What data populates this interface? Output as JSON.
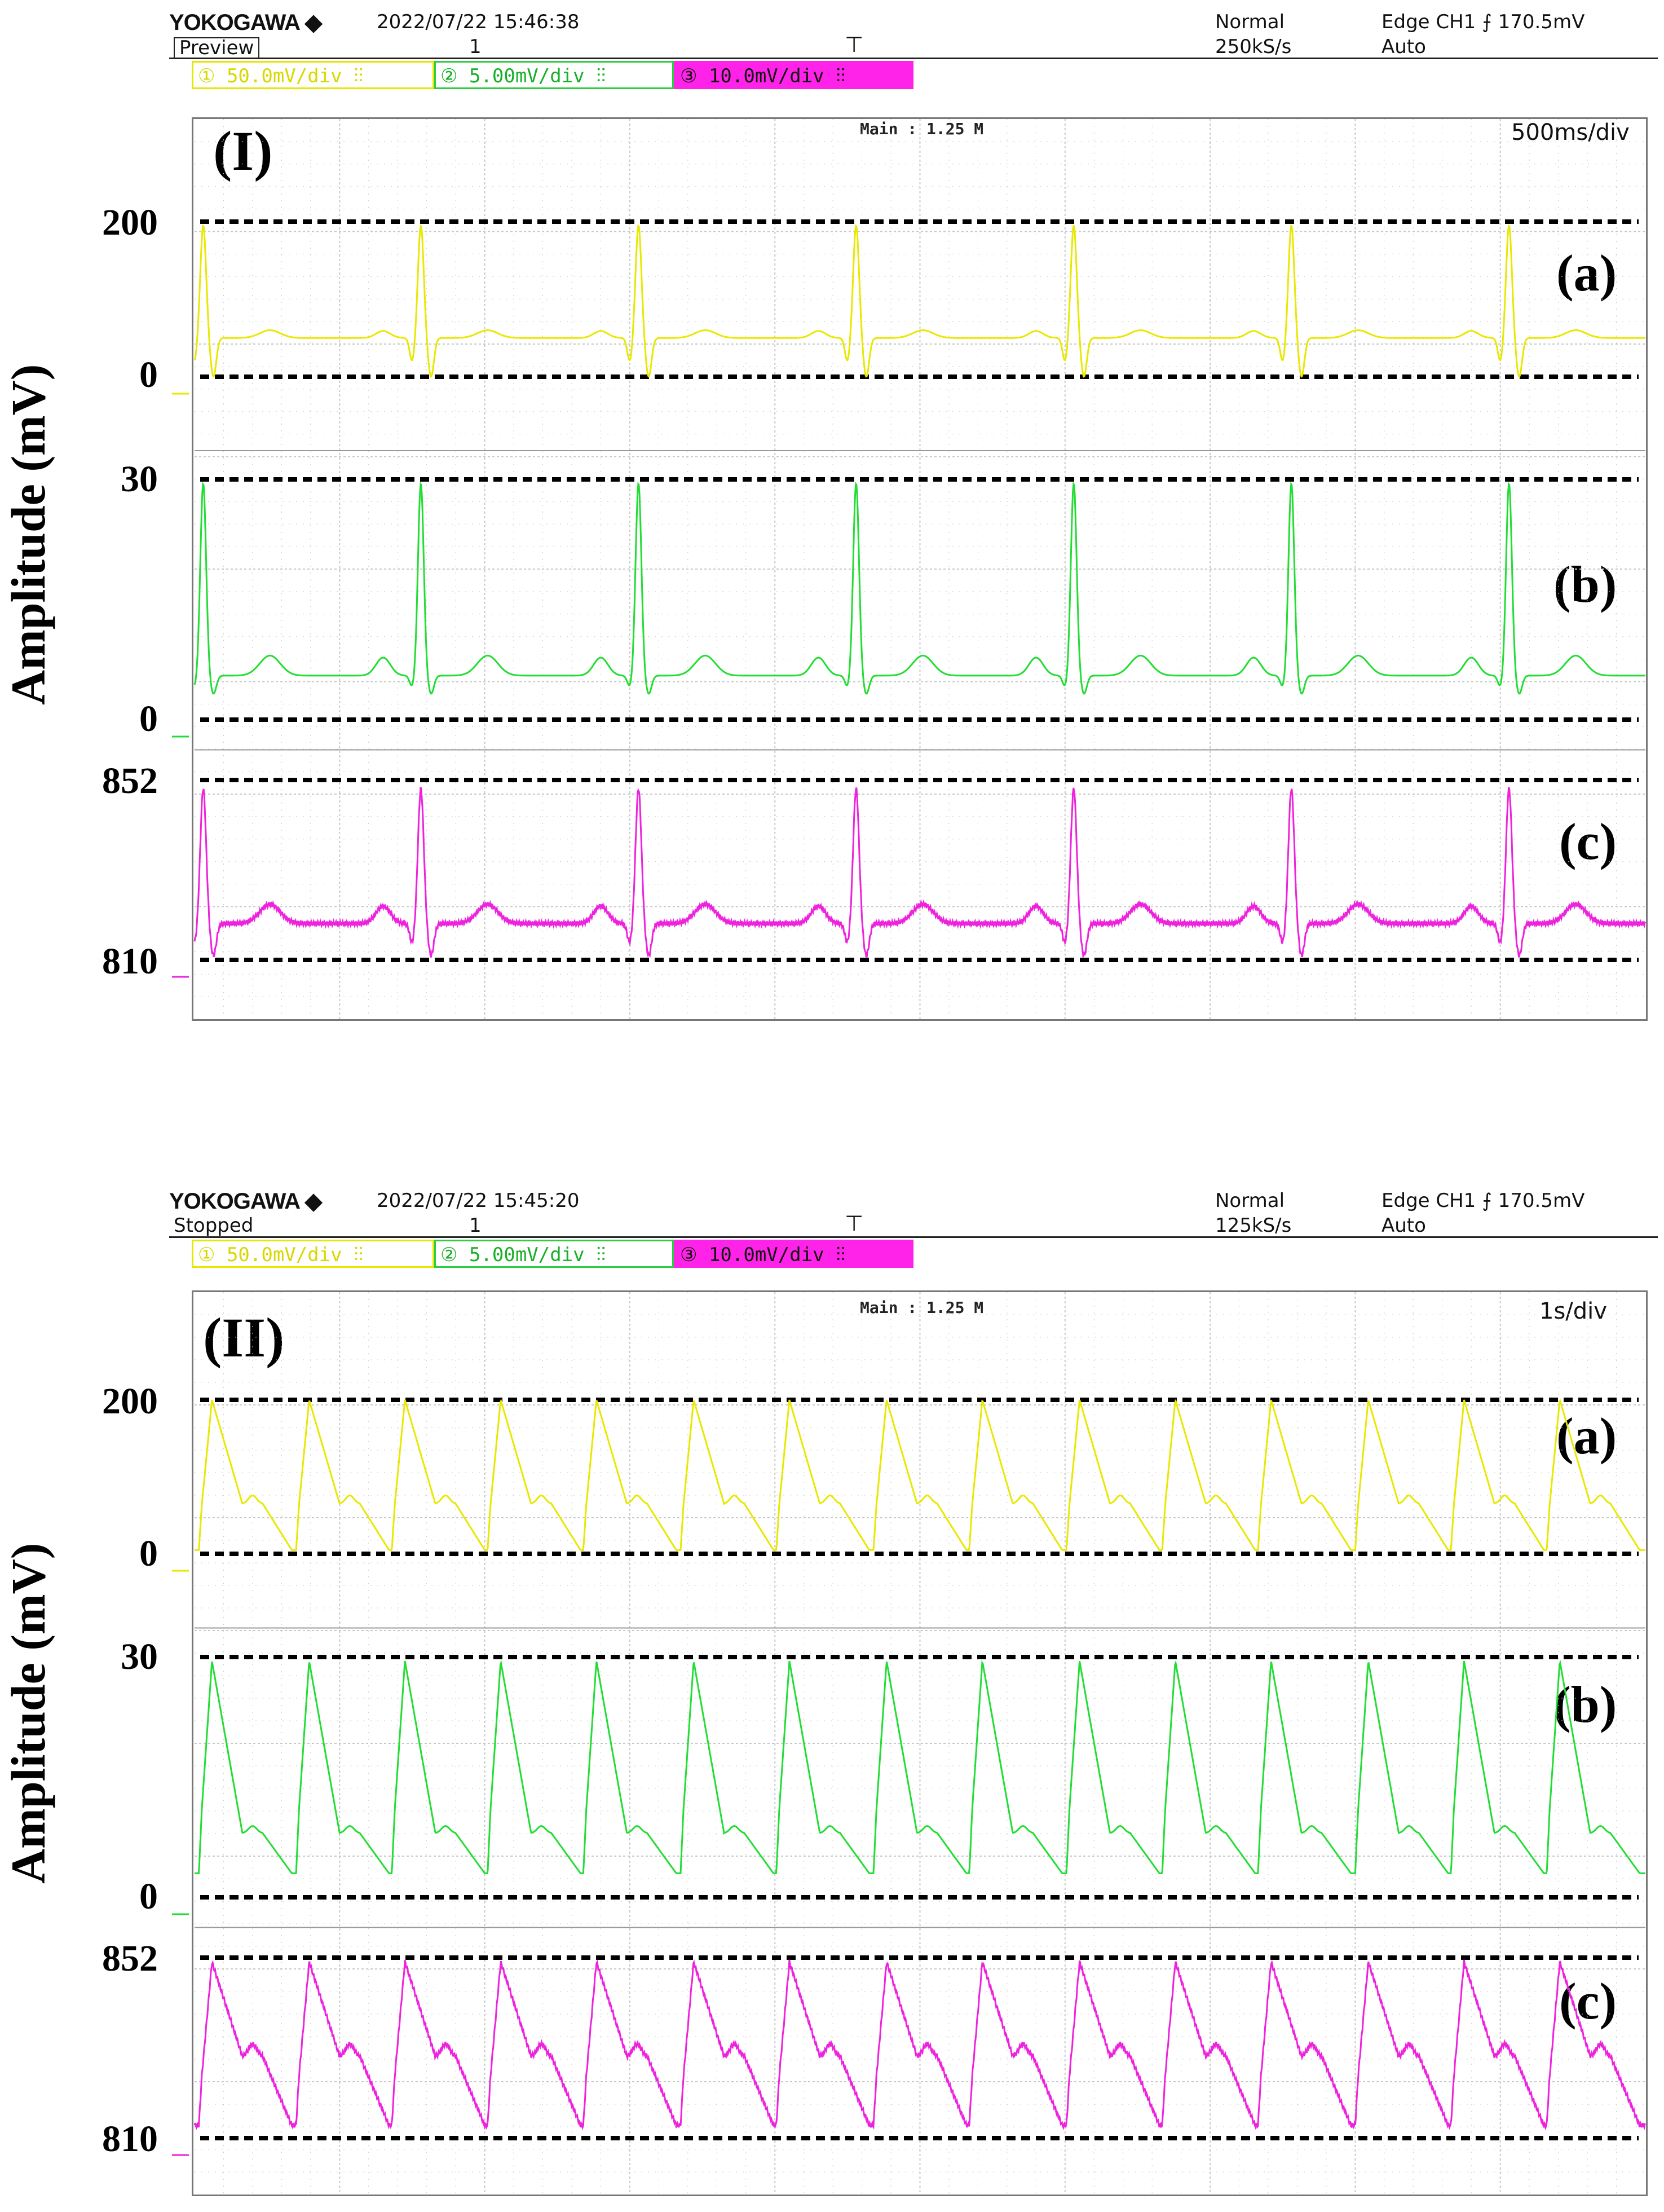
{
  "colors": {
    "ch1": "#e8e800",
    "ch2": "#22dd33",
    "ch3": "#ee22dd",
    "grid": "#c8c8c8",
    "ref": "#000000"
  },
  "ylabel": "Amplitude (mV)",
  "panels": [
    {
      "label": "(I)",
      "brand": "YOKOGAWA ◆",
      "datetime": "2022/07/22 15:46:38",
      "status": "Preview",
      "record": "1",
      "mode": "Normal",
      "sample_rate": "250kS/s",
      "trigger": "Edge CH1 ⨍ 170.5mV",
      "trigger_mode": "Auto",
      "ch1": "① 50.0mV/div ⫶⫶",
      "ch2": "② 5.00mV/div ⫶⫶",
      "ch3": "③ 10.0mV/div ⫶⫶",
      "main": "Main : 1.25 M",
      "timebase": "500ms/div"
    },
    {
      "label": "(II)",
      "brand": "YOKOGAWA ◆",
      "datetime": "2022/07/22 15:45:20",
      "status": "Stopped",
      "record": "1",
      "mode": "Normal",
      "sample_rate": "125kS/s",
      "trigger": "Edge CH1 ⨍ 170.5mV",
      "trigger_mode": "Auto",
      "ch1": "① 50.0mV/div ⫶⫶",
      "ch2": "② 5.00mV/div ⫶⫶",
      "ch3": "③ 10.0mV/div ⫶⫶",
      "main": "Main : 1.25 M",
      "timebase": "1s/div"
    }
  ],
  "chart_data": [
    {
      "type": "line",
      "title": "(I)",
      "ylabel": "Amplitude (mV)",
      "x_unit": "s",
      "timebase": "500ms/div",
      "xlim": [
        0,
        5.0
      ],
      "beat_times": [
        0.03,
        0.78,
        1.53,
        2.28,
        3.03,
        3.78,
        4.53
      ],
      "subplots": [
        {
          "label": "(a)",
          "channel": "CH1",
          "ylim": [
            0,
            200
          ],
          "ticks": [
            "200",
            "0"
          ],
          "baseline": 50,
          "peak": 195,
          "trough": 0,
          "t_wave": 60
        },
        {
          "label": "(b)",
          "channel": "CH2",
          "ylim": [
            0,
            30
          ],
          "ticks": [
            "30",
            "0"
          ],
          "baseline": 5.5,
          "peak": 29.5,
          "trough": 3.2,
          "t_wave": 8
        },
        {
          "label": "(c)",
          "channel": "CH3",
          "ylim": [
            810,
            852
          ],
          "ticks": [
            "852",
            "810"
          ],
          "baseline": 818.5,
          "peak": 850,
          "trough": 811,
          "t_wave": 823
        }
      ]
    },
    {
      "type": "line",
      "title": "(II)",
      "ylabel": "Amplitude (mV)",
      "x_unit": "s",
      "timebase": "1s/div",
      "xlim": [
        0,
        10.0
      ],
      "beat_times": [
        0.05,
        0.72,
        1.38,
        2.04,
        2.7,
        3.37,
        4.03,
        4.7,
        5.36,
        6.03,
        6.69,
        7.35,
        8.02,
        8.68,
        9.34
      ],
      "subplots": [
        {
          "label": "(a)",
          "channel": "CH1",
          "ylim": [
            0,
            200
          ],
          "ticks": [
            "200",
            "0"
          ],
          "peak": 200,
          "plateau": 65,
          "min": 5
        },
        {
          "label": "(b)",
          "channel": "CH2",
          "ylim": [
            0,
            30
          ],
          "ticks": [
            "30",
            "0"
          ],
          "peak": 29.5,
          "plateau": 8,
          "min": 3
        },
        {
          "label": "(c)",
          "channel": "CH3",
          "ylim": [
            810,
            852
          ],
          "ticks": [
            "852",
            "810"
          ],
          "peak": 851,
          "plateau": 829,
          "min": 813
        }
      ]
    }
  ]
}
